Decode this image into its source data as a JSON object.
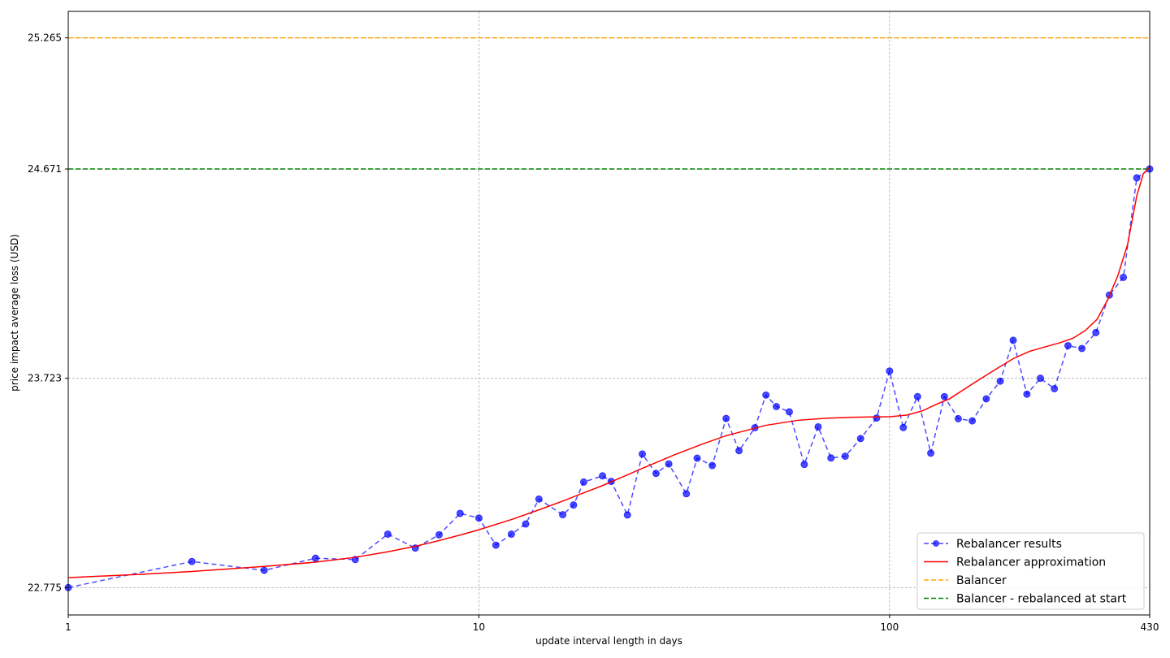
{
  "chart_data": {
    "type": "line",
    "xlabel": "update interval length in days",
    "ylabel": "price impact average loss (USD)",
    "x_scale": "log",
    "xlim": [
      1,
      430
    ],
    "ylim": [
      22.651,
      25.385
    ],
    "x_ticks": [
      1,
      10,
      100,
      430
    ],
    "x_tick_labels": [
      "1",
      "10",
      "100",
      "430"
    ],
    "y_ticks": [
      22.775,
      23.723,
      24.671,
      25.265
    ],
    "y_tick_labels": [
      "22.775",
      "23.723",
      "24.671",
      "25.265"
    ],
    "grid": true,
    "legend_placement": "bottom-right",
    "series": [
      {
        "name": "Rebalancer results",
        "color": "#0000ff",
        "style": "dashed-with-markers",
        "x": [
          1,
          2,
          3,
          4,
          5,
          6,
          7,
          8,
          9,
          10,
          11,
          12,
          13,
          14,
          16,
          17,
          18,
          20,
          21,
          23,
          25,
          27,
          29,
          32,
          34,
          37,
          40,
          43,
          47,
          50,
          53,
          57,
          62,
          67,
          72,
          78,
          85,
          93,
          100,
          108,
          117,
          126,
          136,
          147,
          159,
          172,
          186,
          200,
          216,
          233,
          252,
          272,
          294,
          318,
          343,
          371,
          400,
          430
        ],
        "values": [
          22.775,
          22.893,
          22.853,
          22.908,
          22.902,
          23.017,
          22.954,
          23.014,
          23.111,
          23.09,
          22.967,
          23.017,
          23.063,
          23.176,
          23.105,
          23.149,
          23.253,
          23.281,
          23.256,
          23.104,
          23.38,
          23.292,
          23.335,
          23.2,
          23.361,
          23.328,
          23.541,
          23.395,
          23.499,
          23.647,
          23.595,
          23.571,
          23.333,
          23.503,
          23.362,
          23.37,
          23.45,
          23.543,
          23.756,
          23.5,
          23.64,
          23.384,
          23.64,
          23.54,
          23.53,
          23.63,
          23.71,
          23.895,
          23.651,
          23.723,
          23.676,
          23.871,
          23.858,
          23.93,
          24.1,
          24.18,
          24.631,
          24.671
        ]
      },
      {
        "name": "Rebalancer approximation",
        "color": "#ff0000",
        "style": "solid",
        "x": [
          1,
          1.5,
          2,
          3,
          4,
          5,
          6,
          7,
          8,
          9,
          10,
          12,
          14,
          16,
          18,
          20,
          25,
          30,
          35,
          40,
          50,
          60,
          70,
          80,
          90,
          100,
          110,
          120,
          130,
          140,
          160,
          180,
          200,
          220,
          240,
          260,
          280,
          300,
          320,
          340,
          360,
          380,
          400,
          415,
          430
        ],
        "values": [
          22.82,
          22.835,
          22.848,
          22.871,
          22.89,
          22.912,
          22.937,
          22.962,
          22.988,
          23.013,
          23.037,
          23.083,
          23.127,
          23.167,
          23.204,
          23.237,
          23.315,
          23.377,
          23.425,
          23.463,
          23.51,
          23.533,
          23.542,
          23.546,
          23.548,
          23.549,
          23.556,
          23.575,
          23.605,
          23.63,
          23.7,
          23.76,
          23.812,
          23.846,
          23.866,
          23.884,
          23.905,
          23.94,
          23.99,
          24.08,
          24.19,
          24.33,
          24.55,
          24.65,
          24.68
        ]
      },
      {
        "name": "Balancer",
        "color": "#ffa500",
        "style": "dashed",
        "constant": 25.265
      },
      {
        "name": "Balancer - rebalanced at start",
        "color": "#008000",
        "style": "dashed",
        "constant": 24.671
      }
    ]
  }
}
